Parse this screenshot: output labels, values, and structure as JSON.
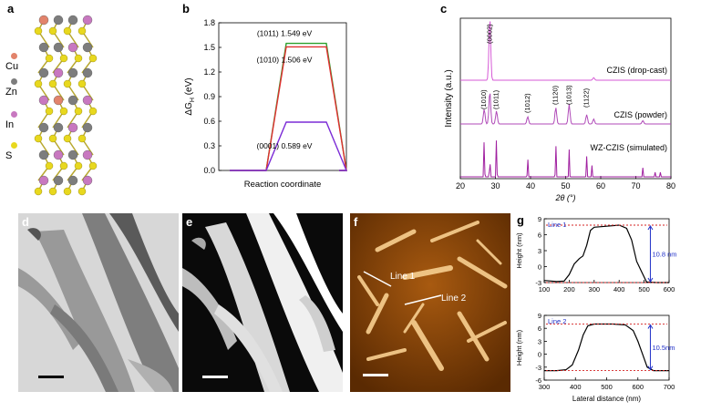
{
  "panels": {
    "a": "a",
    "b": "b",
    "c": "c",
    "d": "d",
    "e": "e",
    "f": "f",
    "g": "g"
  },
  "crystal": {
    "legend": [
      {
        "label": "Cu",
        "color": "#e2836b"
      },
      {
        "label": "Zn",
        "color": "#7d7d7d"
      },
      {
        "label": "In",
        "color": "#c878c0"
      },
      {
        "label": "S",
        "color": "#e8d81e"
      }
    ]
  },
  "chart_data": [
    {
      "type": "line",
      "panel": "b",
      "xlabel": "Reaction coordinate",
      "ylabel_main": "ΔG",
      "ylabel_sub": "H",
      "ylabel_unit": " (eV)",
      "ylim": [
        0,
        1.8
      ],
      "yticks": [
        "0.0",
        "0.3",
        "0.6",
        "0.9",
        "1.2",
        "1.5",
        "1.8"
      ],
      "ytick_values": [
        0,
        0.3,
        0.6,
        0.9,
        1.2,
        1.5,
        1.8
      ],
      "series": [
        {
          "name": "(1011) 1.549 eV",
          "color": "#2ca02c",
          "value": 1.549
        },
        {
          "name": "(1010) 1.506 eV",
          "color": "#e03030",
          "value": 1.506
        },
        {
          "name": "(0001) 0.589 eV",
          "color": "#7b2bd6",
          "value": 0.589
        }
      ]
    },
    {
      "type": "line",
      "panel": "c",
      "xlabel": "2θ (°)",
      "ylabel": "Intensity (a.u.)",
      "xlim": [
        20,
        80
      ],
      "xticks": [
        "20",
        "30",
        "40",
        "50",
        "60",
        "70",
        "80"
      ],
      "xtick_values": [
        20,
        30,
        40,
        50,
        60,
        70,
        80
      ],
      "series": [
        {
          "name": "CZIS (drop-cast)",
          "color": "#d65ad6",
          "peaks": [
            [
              28.4,
              1.0
            ],
            [
              58.0,
              0.04
            ]
          ]
        },
        {
          "name": "CZIS (powder)",
          "color": "#b04ab8",
          "peaks": [
            [
              26.8,
              0.45
            ],
            [
              28.4,
              1.0
            ],
            [
              30.3,
              0.4
            ],
            [
              39.2,
              0.22
            ],
            [
              47.2,
              0.5
            ],
            [
              51.0,
              0.6
            ],
            [
              56.0,
              0.28
            ],
            [
              58.0,
              0.15
            ],
            [
              72.0,
              0.1
            ]
          ]
        },
        {
          "name": "WZ-CZIS (simulated)",
          "color": "#a020a0",
          "peaks": [
            [
              26.8,
              0.9
            ],
            [
              28.4,
              0.55
            ],
            [
              30.3,
              0.95
            ],
            [
              39.2,
              0.45
            ],
            [
              47.2,
              0.8
            ],
            [
              51.0,
              0.6
            ],
            [
              56.0,
              0.45
            ],
            [
              57.5,
              0.25
            ],
            [
              72.0,
              0.2
            ],
            [
              75.5,
              0.1
            ],
            [
              77.0,
              0.1
            ]
          ]
        }
      ],
      "annotations": [
        "(0002)",
        "(1010)",
        "(1011)",
        "(1012)",
        "(1120)",
        "(1013)",
        "(1122)"
      ]
    },
    {
      "type": "line",
      "panel": "g-top",
      "ylabel": "Height (nm)",
      "xlim": [
        100,
        600
      ],
      "ylim": [
        -3,
        9
      ],
      "xticks": [
        "100",
        "200",
        "300",
        "400",
        "500",
        "600"
      ],
      "xtick_values": [
        100,
        200,
        300,
        400,
        500,
        600
      ],
      "yticks": [
        "-3",
        "0",
        "3",
        "6",
        "9"
      ],
      "ytick_values": [
        -3,
        0,
        3,
        6,
        9
      ],
      "line_label": "Line 1",
      "height_label": "10.8 nm",
      "profile": [
        [
          100,
          -2.6
        ],
        [
          150,
          -2.8
        ],
        [
          180,
          -2.7
        ],
        [
          200,
          -1.5
        ],
        [
          220,
          0.5
        ],
        [
          240,
          1.5
        ],
        [
          255,
          2.0
        ],
        [
          270,
          4.0
        ],
        [
          285,
          6.8
        ],
        [
          300,
          7.4
        ],
        [
          350,
          7.6
        ],
        [
          400,
          7.8
        ],
        [
          430,
          7.2
        ],
        [
          450,
          5.0
        ],
        [
          470,
          1.0
        ],
        [
          490,
          -1.0
        ],
        [
          510,
          -2.9
        ],
        [
          550,
          -3.0
        ],
        [
          600,
          -3.0
        ]
      ]
    },
    {
      "type": "line",
      "panel": "g-bottom",
      "ylabel": "Height (nm)",
      "xlabel": "Lateral distance (nm)",
      "xlim": [
        300,
        700
      ],
      "ylim": [
        -6,
        9
      ],
      "xticks": [
        "300",
        "400",
        "500",
        "600",
        "700"
      ],
      "xtick_values": [
        300,
        400,
        500,
        600,
        700
      ],
      "yticks": [
        "-6",
        "-3",
        "0",
        "3",
        "6",
        "9"
      ],
      "ytick_values": [
        -6,
        -3,
        0,
        3,
        6,
        9
      ],
      "line_label": "Line 2",
      "height_label": "10.5nm",
      "profile": [
        [
          300,
          -3.8
        ],
        [
          340,
          -3.8
        ],
        [
          370,
          -3.6
        ],
        [
          390,
          -2.5
        ],
        [
          410,
          1.0
        ],
        [
          425,
          4.5
        ],
        [
          440,
          6.6
        ],
        [
          460,
          7.0
        ],
        [
          520,
          7.0
        ],
        [
          560,
          6.8
        ],
        [
          585,
          5.5
        ],
        [
          600,
          3.0
        ],
        [
          615,
          0.0
        ],
        [
          630,
          -3.0
        ],
        [
          650,
          -3.8
        ],
        [
          700,
          -3.8
        ]
      ]
    }
  ],
  "afm": {
    "line1": "Line 1",
    "line2": "Line 2"
  }
}
